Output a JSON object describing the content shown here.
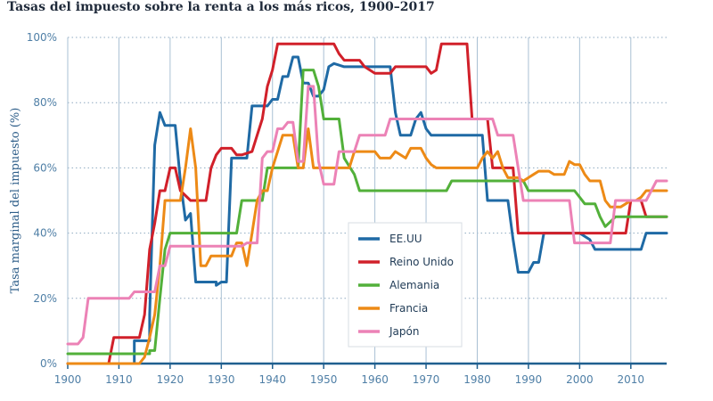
{
  "chart_data": {
    "type": "line",
    "title": "Tasas del impuesto sobre la renta a los más ricos, 1900–2017",
    "xlabel": "",
    "ylabel": "Tasa marginal del impuesto (%)",
    "xlim": [
      1900,
      2017
    ],
    "ylim": [
      0,
      100
    ],
    "x_ticks": [
      1900,
      1910,
      1920,
      1930,
      1940,
      1950,
      1960,
      1970,
      1980,
      1990,
      2000,
      2010
    ],
    "y_ticks": [
      0,
      20,
      40,
      60,
      80,
      100
    ],
    "y_tick_labels": [
      "0%",
      "20%",
      "40%",
      "60%",
      "80%",
      "100%"
    ],
    "grid": "vertical-solid, horizontal-dotted",
    "legend_position": "center-right",
    "series": [
      {
        "name": "EE.UU",
        "color": "#1f6aa5",
        "points": [
          [
            1900,
            0
          ],
          [
            1913,
            0
          ],
          [
            1913,
            7
          ],
          [
            1916,
            7
          ],
          [
            1916,
            15
          ],
          [
            1917,
            67
          ],
          [
            1918,
            77
          ],
          [
            1919,
            73
          ],
          [
            1921,
            73
          ],
          [
            1922,
            56
          ],
          [
            1923,
            44
          ],
          [
            1924,
            46
          ],
          [
            1925,
            25
          ],
          [
            1929,
            25
          ],
          [
            1929,
            24
          ],
          [
            1930,
            25
          ],
          [
            1931,
            25
          ],
          [
            1932,
            63
          ],
          [
            1935,
            63
          ],
          [
            1936,
            79
          ],
          [
            1939,
            79
          ],
          [
            1940,
            81
          ],
          [
            1941,
            81
          ],
          [
            1942,
            88
          ],
          [
            1943,
            88
          ],
          [
            1944,
            94
          ],
          [
            1945,
            94
          ],
          [
            1946,
            86
          ],
          [
            1947,
            86
          ],
          [
            1948,
            82
          ],
          [
            1949,
            82
          ],
          [
            1950,
            84
          ],
          [
            1951,
            91
          ],
          [
            1952,
            92
          ],
          [
            1954,
            91
          ],
          [
            1963,
            91
          ],
          [
            1964,
            77
          ],
          [
            1965,
            70
          ],
          [
            1967,
            70
          ],
          [
            1968,
            75
          ],
          [
            1969,
            77
          ],
          [
            1970,
            72
          ],
          [
            1971,
            70
          ],
          [
            1981,
            70
          ],
          [
            1982,
            50
          ],
          [
            1986,
            50
          ],
          [
            1987,
            38
          ],
          [
            1988,
            28
          ],
          [
            1990,
            28
          ],
          [
            1991,
            31
          ],
          [
            1992,
            31
          ],
          [
            1993,
            40
          ],
          [
            2000,
            40
          ],
          [
            2001,
            39
          ],
          [
            2002,
            38
          ],
          [
            2003,
            35
          ],
          [
            2012,
            35
          ],
          [
            2013,
            40
          ],
          [
            2017,
            40
          ]
        ]
      },
      {
        "name": "Reino Unido",
        "color": "#d1202a",
        "points": [
          [
            1900,
            0
          ],
          [
            1908,
            0
          ],
          [
            1909,
            8
          ],
          [
            1913,
            8
          ],
          [
            1914,
            8
          ],
          [
            1915,
            15
          ],
          [
            1916,
            35
          ],
          [
            1917,
            43
          ],
          [
            1918,
            53
          ],
          [
            1919,
            53
          ],
          [
            1920,
            60
          ],
          [
            1921,
            60
          ],
          [
            1922,
            53
          ],
          [
            1924,
            50
          ],
          [
            1925,
            50
          ],
          [
            1927,
            50
          ],
          [
            1928,
            60
          ],
          [
            1929,
            64
          ],
          [
            1930,
            66
          ],
          [
            1932,
            66
          ],
          [
            1933,
            64
          ],
          [
            1934,
            64
          ],
          [
            1936,
            65
          ],
          [
            1937,
            70
          ],
          [
            1938,
            75
          ],
          [
            1939,
            85
          ],
          [
            1940,
            90
          ],
          [
            1941,
            98
          ],
          [
            1952,
            98
          ],
          [
            1953,
            95
          ],
          [
            1954,
            93
          ],
          [
            1957,
            93
          ],
          [
            1958,
            91
          ],
          [
            1960,
            89
          ],
          [
            1963,
            89
          ],
          [
            1964,
            91
          ],
          [
            1970,
            91
          ],
          [
            1971,
            89
          ],
          [
            1972,
            90
          ],
          [
            1973,
            98
          ],
          [
            1978,
            98
          ],
          [
            1979,
            75
          ],
          [
            1982,
            75
          ],
          [
            1983,
            60
          ],
          [
            1987,
            60
          ],
          [
            1988,
            40
          ],
          [
            2009,
            40
          ],
          [
            2010,
            50
          ],
          [
            2012,
            50
          ],
          [
            2013,
            45
          ],
          [
            2017,
            45
          ]
        ]
      },
      {
        "name": "Alemania",
        "color": "#52b03a",
        "points": [
          [
            1900,
            3
          ],
          [
            1916,
            3
          ],
          [
            1916,
            4
          ],
          [
            1917,
            4
          ],
          [
            1918,
            20
          ],
          [
            1919,
            35
          ],
          [
            1920,
            40
          ],
          [
            1933,
            40
          ],
          [
            1934,
            50
          ],
          [
            1938,
            50
          ],
          [
            1939,
            60
          ],
          [
            1945,
            60
          ],
          [
            1946,
            90
          ],
          [
            1948,
            90
          ],
          [
            1949,
            85
          ],
          [
            1950,
            75
          ],
          [
            1953,
            75
          ],
          [
            1954,
            63
          ],
          [
            1956,
            58
          ],
          [
            1957,
            53
          ],
          [
            1974,
            53
          ],
          [
            1975,
            56
          ],
          [
            1989,
            56
          ],
          [
            1990,
            53
          ],
          [
            1999,
            53
          ],
          [
            2000,
            51
          ],
          [
            2001,
            49
          ],
          [
            2003,
            49
          ],
          [
            2004,
            45
          ],
          [
            2005,
            42
          ],
          [
            2007,
            45
          ],
          [
            2017,
            45
          ]
        ]
      },
      {
        "name": "Francia",
        "color": "#ed8a16",
        "points": [
          [
            1900,
            0
          ],
          [
            1914,
            0
          ],
          [
            1915,
            2
          ],
          [
            1916,
            8
          ],
          [
            1917,
            15
          ],
          [
            1918,
            30
          ],
          [
            1919,
            50
          ],
          [
            1922,
            50
          ],
          [
            1923,
            60
          ],
          [
            1924,
            72
          ],
          [
            1925,
            60
          ],
          [
            1926,
            30
          ],
          [
            1927,
            30
          ],
          [
            1928,
            33
          ],
          [
            1932,
            33
          ],
          [
            1933,
            37
          ],
          [
            1934,
            37
          ],
          [
            1935,
            30
          ],
          [
            1936,
            40
          ],
          [
            1937,
            50
          ],
          [
            1938,
            53
          ],
          [
            1939,
            53
          ],
          [
            1940,
            60
          ],
          [
            1942,
            70
          ],
          [
            1944,
            70
          ],
          [
            1945,
            60
          ],
          [
            1946,
            60
          ],
          [
            1947,
            72
          ],
          [
            1948,
            60
          ],
          [
            1955,
            60
          ],
          [
            1956,
            65
          ],
          [
            1960,
            65
          ],
          [
            1961,
            63
          ],
          [
            1963,
            63
          ],
          [
            1964,
            65
          ],
          [
            1966,
            63
          ],
          [
            1967,
            66
          ],
          [
            1969,
            66
          ],
          [
            1970,
            63
          ],
          [
            1971,
            61
          ],
          [
            1972,
            60
          ],
          [
            1980,
            60
          ],
          [
            1981,
            63
          ],
          [
            1982,
            65
          ],
          [
            1983,
            63
          ],
          [
            1984,
            65
          ],
          [
            1985,
            60
          ],
          [
            1986,
            57
          ],
          [
            1988,
            57
          ],
          [
            1989,
            56
          ],
          [
            1990,
            57
          ],
          [
            1991,
            58
          ],
          [
            1992,
            59
          ],
          [
            1994,
            59
          ],
          [
            1995,
            58
          ],
          [
            1997,
            58
          ],
          [
            1998,
            62
          ],
          [
            1999,
            61
          ],
          [
            2000,
            61
          ],
          [
            2001,
            58
          ],
          [
            2002,
            56
          ],
          [
            2004,
            56
          ],
          [
            2005,
            50
          ],
          [
            2006,
            48
          ],
          [
            2008,
            48
          ],
          [
            2009,
            49
          ],
          [
            2010,
            50
          ],
          [
            2011,
            50
          ],
          [
            2012,
            51
          ],
          [
            2013,
            53
          ],
          [
            2017,
            53
          ]
        ]
      },
      {
        "name": "Japón",
        "color": "#ec82b6",
        "points": [
          [
            1900,
            6
          ],
          [
            1902,
            6
          ],
          [
            1903,
            8
          ],
          [
            1904,
            20
          ],
          [
            1912,
            20
          ],
          [
            1913,
            22
          ],
          [
            1917,
            22
          ],
          [
            1918,
            30
          ],
          [
            1919,
            30
          ],
          [
            1920,
            36
          ],
          [
            1934,
            36
          ],
          [
            1935,
            37
          ],
          [
            1937,
            37
          ],
          [
            1938,
            63
          ],
          [
            1939,
            65
          ],
          [
            1940,
            65
          ],
          [
            1941,
            72
          ],
          [
            1942,
            72
          ],
          [
            1943,
            74
          ],
          [
            1944,
            74
          ],
          [
            1945,
            62
          ],
          [
            1946,
            62
          ],
          [
            1947,
            85
          ],
          [
            1948,
            85
          ],
          [
            1949,
            62
          ],
          [
            1950,
            55
          ],
          [
            1952,
            55
          ],
          [
            1953,
            65
          ],
          [
            1956,
            65
          ],
          [
            1957,
            70
          ],
          [
            1962,
            70
          ],
          [
            1963,
            75
          ],
          [
            1983,
            75
          ],
          [
            1984,
            70
          ],
          [
            1987,
            70
          ],
          [
            1988,
            60
          ],
          [
            1989,
            50
          ],
          [
            1998,
            50
          ],
          [
            1999,
            37
          ],
          [
            2006,
            37
          ],
          [
            2007,
            50
          ],
          [
            2013,
            50
          ],
          [
            2014,
            53
          ],
          [
            2015,
            56
          ],
          [
            2017,
            56
          ]
        ]
      }
    ]
  }
}
